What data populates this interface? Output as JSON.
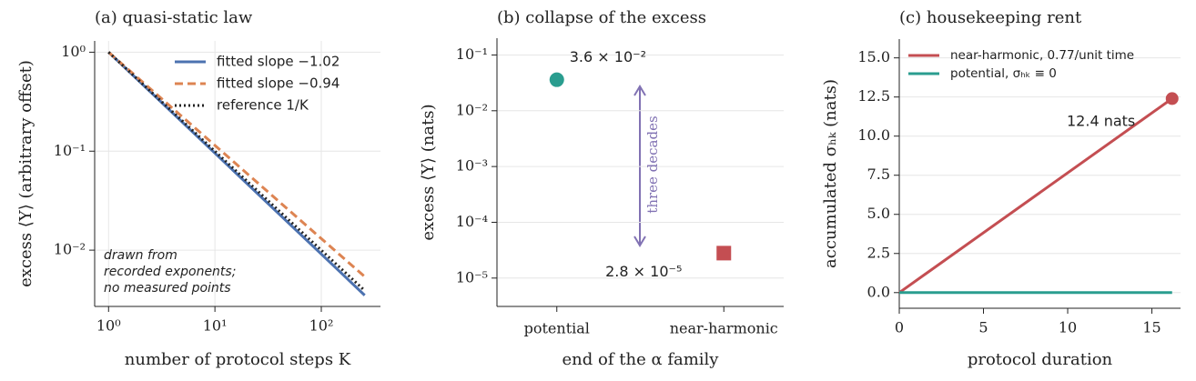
{
  "chart_data": [
    {
      "type": "line",
      "title": "(a) quasi-static law",
      "xlabel": "number of protocol steps K",
      "ylabel": "excess ⟨Y⟩ (arbitrary offset)",
      "xlog": true,
      "ylog": true,
      "xlim": [
        0.74,
        360
      ],
      "ylim": [
        0.0027,
        1.3
      ],
      "xticks": [
        {
          "value": 1,
          "label": "10⁰"
        },
        {
          "value": 10,
          "label": "10¹"
        },
        {
          "value": 100,
          "label": "10²"
        }
      ],
      "yticks": [
        {
          "value": 0.01,
          "label": "10⁻²"
        },
        {
          "value": 0.1,
          "label": "10⁻¹"
        },
        {
          "value": 1,
          "label": "10⁰"
        }
      ],
      "grid": "both",
      "legend": "upper right",
      "x": [
        1,
        256
      ],
      "series": [
        {
          "name": "fitted slope −1.02",
          "color": "#4c72b0",
          "dash": "solid",
          "values": [
            1,
            0.0035
          ]
        },
        {
          "name": "fitted slope −0.94",
          "color": "#dd8452",
          "dash": "dashed",
          "values": [
            1,
            0.0054
          ]
        },
        {
          "name": "reference 1/K",
          "color": "#222222",
          "dash": "dotted",
          "values": [
            1,
            0.0039
          ]
        }
      ],
      "annotation": [
        "drawn from",
        "recorded exponents;",
        "no measured points"
      ]
    },
    {
      "type": "scatter",
      "title": "(b) collapse of the excess",
      "xlabel": "end of the α family",
      "ylabel": "excess ⟨Y⟩ (nats)",
      "ylog": true,
      "ylim": [
        3.1e-06,
        0.2
      ],
      "yticks": [
        {
          "value": 1e-05,
          "label": "10⁻⁵"
        },
        {
          "value": 0.0001,
          "label": "10⁻⁴"
        },
        {
          "value": 0.001,
          "label": "10⁻³"
        },
        {
          "value": 0.01,
          "label": "10⁻²"
        },
        {
          "value": 0.1,
          "label": "10⁻¹"
        }
      ],
      "grid": "y",
      "categories": [
        "potential",
        "near-harmonic"
      ],
      "values": [
        0.036,
        2.8e-05
      ],
      "value_labels": [
        "3.6 × 10⁻²",
        "2.8 × 10⁻⁵"
      ],
      "colors": [
        "#2a9d8f",
        "#c44e52"
      ],
      "markers": [
        "circle",
        "square"
      ],
      "annotation": "three decades"
    },
    {
      "type": "line",
      "title": "(c) housekeeping rent",
      "xlabel": "protocol duration",
      "ylabel": "accumulated σₕₖ (nats)",
      "xlim": [
        0,
        16.7
      ],
      "ylim": [
        -1,
        16.2
      ],
      "xticks": [
        0,
        5,
        10,
        15
      ],
      "yticks": [
        {
          "value": 0,
          "label": "0.0"
        },
        2.5,
        {
          "value": 5,
          "label": "5.0"
        },
        7.5,
        {
          "value": 10,
          "label": "10.0"
        },
        12.5,
        {
          "value": 15,
          "label": "15.0"
        }
      ],
      "grid": "y",
      "legend": "upper left",
      "x": [
        0,
        16.2
      ],
      "series": [
        {
          "name": "near-harmonic, 0.77/unit time",
          "color": "#c44e52",
          "dash": "solid",
          "values": [
            0,
            12.4
          ],
          "end_marker": true
        },
        {
          "name": "potential, σₕₖ ≡ 0",
          "color": "#2a9d8f",
          "dash": "solid",
          "values": [
            0,
            0
          ]
        }
      ],
      "annotation": "12.4 nats"
    }
  ]
}
